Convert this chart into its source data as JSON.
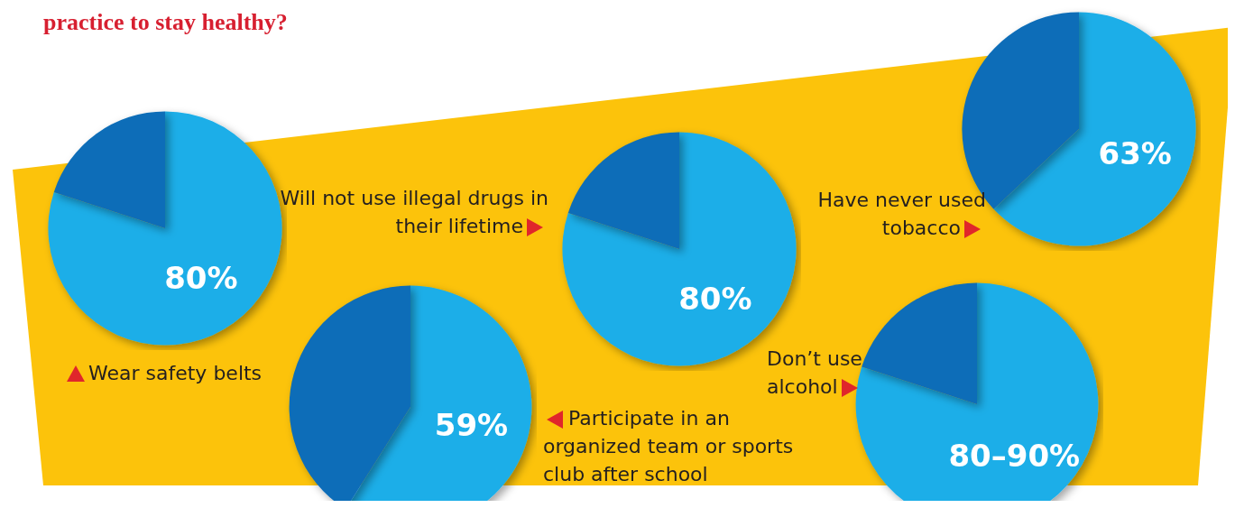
{
  "chart_data": [
    {
      "type": "pie",
      "title": "practice to stay healthy?",
      "categories": [
        "Wear safety belts",
        null
      ],
      "values": [
        80,
        20
      ],
      "colors": [
        "#1eaee8",
        "#0b6db8"
      ],
      "value_labels": [
        "80%",
        null
      ],
      "legend": false
    },
    {
      "type": "pie",
      "categories": [
        "Participate in an organized team or sports club after school",
        null
      ],
      "values": [
        59,
        41
      ],
      "colors": [
        "#1eaee8",
        "#0b6db8"
      ],
      "value_labels": [
        "59%",
        null
      ],
      "legend": false
    },
    {
      "type": "pie",
      "categories": [
        "Will not use illegal drugs in their lifetime",
        null
      ],
      "values": [
        80,
        20
      ],
      "colors": [
        "#1eaee8",
        "#0b6db8"
      ],
      "value_labels": [
        "80%",
        null
      ],
      "legend": false
    },
    {
      "type": "pie",
      "categories": [
        "Have never used tobacco",
        null
      ],
      "values": [
        63,
        37
      ],
      "colors": [
        "#1eaee8",
        "#0b6db8"
      ],
      "value_labels": [
        "63%",
        null
      ],
      "legend": false
    },
    {
      "type": "pie",
      "categories": [
        "Don’t use alcohol",
        null
      ],
      "values": [
        80,
        20
      ],
      "colors": [
        "#1eaee8",
        "#0b6db8"
      ],
      "value_labels": [
        "80–90%",
        null
      ],
      "legend": false
    }
  ]
}
